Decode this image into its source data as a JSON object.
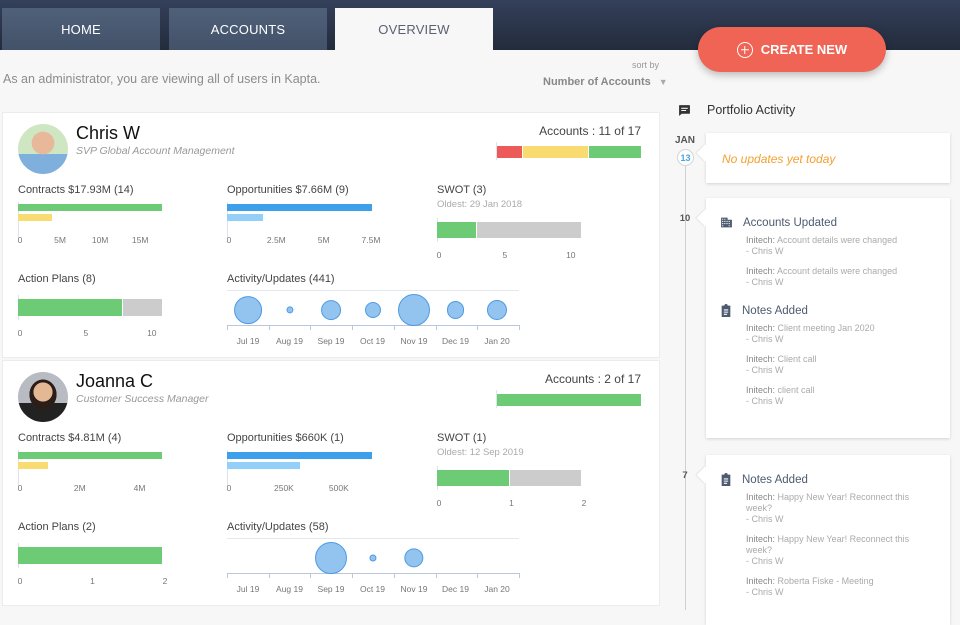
{
  "nav": {
    "tabs": [
      "HOME",
      "ACCOUNTS",
      "OVERVIEW"
    ],
    "active": "OVERVIEW",
    "create_label": "CREATE NEW"
  },
  "intro": "As an administrator, you are viewing all of users in Kapta.",
  "sort": {
    "label": "sort by",
    "value": "Number of Accounts"
  },
  "colors": {
    "green": "#6dcb76",
    "yellow": "#f8dc72",
    "red": "#ed5a5a",
    "gray": "#cccccc",
    "blue": "#3ea0ea",
    "lightblue": "#93cff8",
    "accent": "#ef6454"
  },
  "users": [
    {
      "name": "Chris W",
      "role": "SVP Global Account Management",
      "accounts_label": "Accounts : 11 of 17",
      "accounts_segments": [
        {
          "color": "red",
          "value": 2
        },
        {
          "color": "yellow",
          "value": 5
        },
        {
          "color": "green",
          "value": 4
        }
      ],
      "contracts": {
        "label": "Contracts $17.93M (14)",
        "max": 18.1,
        "ticks": [
          {
            "v": 0,
            "t": "0"
          },
          {
            "v": 5,
            "t": "5M"
          },
          {
            "v": 10,
            "t": "10M"
          },
          {
            "v": 15,
            "t": "15M"
          }
        ],
        "bars": [
          {
            "color": "green",
            "value": 17.93
          },
          {
            "color": "yellow",
            "value": 4.2
          }
        ]
      },
      "opportunities": {
        "label": "Opportunities $7.66M (9)",
        "max": 7.66,
        "ticks": [
          {
            "v": 0,
            "t": "0"
          },
          {
            "v": 2.5,
            "t": "2.5M"
          },
          {
            "v": 5,
            "t": "5M"
          },
          {
            "v": 7.5,
            "t": "7.5M"
          }
        ],
        "bars": [
          {
            "color": "blue",
            "value": 7.66
          },
          {
            "color": "lightblue",
            "value": 1.9
          }
        ]
      },
      "swot": {
        "label": "SWOT (3)",
        "oldest": "Oldest: 29 Jan 2018",
        "max": 11,
        "ticks": [
          {
            "v": 0,
            "t": "0"
          },
          {
            "v": 5,
            "t": "5"
          },
          {
            "v": 10,
            "t": "10"
          }
        ],
        "segments": [
          {
            "color": "green",
            "value": 3
          },
          {
            "color": "gray",
            "value": 8
          }
        ]
      },
      "action_plans": {
        "label": "Action Plans (8)",
        "max": 11,
        "ticks": [
          {
            "v": 0,
            "t": "0"
          },
          {
            "v": 5,
            "t": "5"
          },
          {
            "v": 10,
            "t": "10"
          }
        ],
        "segments": [
          {
            "color": "green",
            "value": 8
          },
          {
            "color": "gray",
            "value": 3
          }
        ]
      },
      "activity": {
        "label": "Activity/Updates (441)",
        "months": [
          "Jul 19",
          "Aug 19",
          "Sep 19",
          "Oct 19",
          "Nov 19",
          "Dec 19",
          "Jan 20"
        ],
        "values": [
          106,
          7,
          54,
          35,
          140,
          44,
          55
        ]
      }
    },
    {
      "name": "Joanna C",
      "role": "Customer Success Manager",
      "accounts_label": "Accounts : 2 of 17",
      "accounts_segments": [
        {
          "color": "green",
          "value": 2
        }
      ],
      "contracts": {
        "label": "Contracts $4.81M (4)",
        "max": 4.85,
        "ticks": [
          {
            "v": 0,
            "t": "0"
          },
          {
            "v": 2,
            "t": "2M"
          },
          {
            "v": 4,
            "t": "4M"
          }
        ],
        "bars": [
          {
            "color": "green",
            "value": 4.81
          },
          {
            "color": "yellow",
            "value": 1.0
          }
        ]
      },
      "opportunities": {
        "label": "Opportunities $660K (1)",
        "max": 660,
        "ticks": [
          {
            "v": 0,
            "t": "0"
          },
          {
            "v": 250,
            "t": "250K"
          },
          {
            "v": 500,
            "t": "500K"
          }
        ],
        "bars": [
          {
            "color": "blue",
            "value": 660
          },
          {
            "color": "lightblue",
            "value": 330
          }
        ]
      },
      "swot": {
        "label": "SWOT (1)",
        "oldest": "Oldest: 12 Sep 2019",
        "max": 2,
        "ticks": [
          {
            "v": 0,
            "t": "0"
          },
          {
            "v": 1,
            "t": "1"
          },
          {
            "v": 2,
            "t": "2"
          }
        ],
        "segments": [
          {
            "color": "green",
            "value": 1
          },
          {
            "color": "gray",
            "value": 1
          }
        ]
      },
      "action_plans": {
        "label": "Action Plans (2)",
        "max": 2,
        "ticks": [
          {
            "v": 0,
            "t": "0"
          },
          {
            "v": 1,
            "t": "1"
          },
          {
            "v": 2,
            "t": "2"
          }
        ],
        "segments": [
          {
            "color": "green",
            "value": 2
          }
        ]
      },
      "activity": {
        "label": "Activity/Updates (58)",
        "months": [
          "Jul 19",
          "Aug 19",
          "Sep 19",
          "Oct 19",
          "Nov 19",
          "Dec 19",
          "Jan 20"
        ],
        "values": [
          0,
          0,
          41,
          2,
          15,
          0,
          0
        ]
      }
    }
  ],
  "activity_panel": {
    "title": "Portfolio Activity",
    "month": "JAN",
    "days": [
      {
        "day": "13",
        "empty_text": "No updates yet today",
        "sections": []
      },
      {
        "day": "10",
        "sections": [
          {
            "icon": "building",
            "title": "Accounts Updated",
            "items": [
              {
                "account": "Initech:",
                "text": "Account details were changed",
                "by": "- Chris W"
              },
              {
                "account": "Initech:",
                "text": "Account details were changed",
                "by": "- Chris W"
              }
            ]
          },
          {
            "icon": "clipboard",
            "title": "Notes Added",
            "items": [
              {
                "account": "Initech:",
                "text": "Client meeting Jan 2020",
                "by": "- Chris W"
              },
              {
                "account": "Initech:",
                "text": "Client call",
                "by": "- Chris W"
              },
              {
                "account": "Initech:",
                "text": "client call",
                "by": "- Chris W"
              }
            ]
          }
        ]
      },
      {
        "day": "7",
        "sections": [
          {
            "icon": "clipboard",
            "title": "Notes Added",
            "items": [
              {
                "account": "Initech:",
                "text": "Happy New Year! Reconnect this week?",
                "by": "- Chris W"
              },
              {
                "account": "Initech:",
                "text": "Happy New Year! Reconnect this week?",
                "by": "- Chris W"
              },
              {
                "account": "Initech:",
                "text": "Roberta Fiske - Meeting",
                "by": "- Chris W"
              }
            ]
          }
        ]
      }
    ]
  }
}
